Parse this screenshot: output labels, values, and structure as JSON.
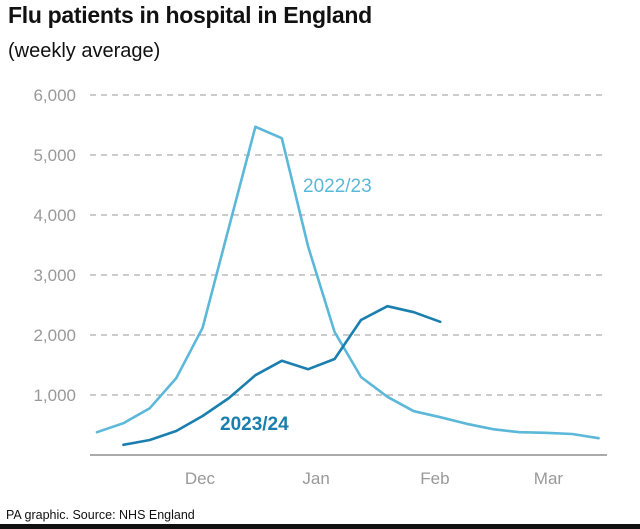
{
  "chart_data": {
    "type": "line",
    "title": "Flu patients in hospital in England",
    "subtitle": "(weekly average)",
    "ylim": [
      0,
      6000
    ],
    "yticks": [
      1000,
      2000,
      3000,
      4000,
      5000,
      6000
    ],
    "ytick_labels": [
      "1,000",
      "2,000",
      "3,000",
      "4,000",
      "5,000",
      "6,000"
    ],
    "grid": true,
    "xlim": [
      0,
      19
    ],
    "xticks": [
      {
        "label": "Dec",
        "x": 3.9
      },
      {
        "label": "Jan",
        "x": 8.3
      },
      {
        "label": "Feb",
        "x": 12.8
      },
      {
        "label": "Mar",
        "x": 17.1
      }
    ],
    "series": [
      {
        "name": "2022/23",
        "color": "#5bb8d8",
        "x": [
          0,
          1,
          2,
          3,
          4,
          5,
          6,
          7,
          8,
          9,
          10,
          11,
          12,
          13,
          14,
          15,
          16,
          17,
          18,
          19
        ],
        "values": [
          380,
          530,
          780,
          1280,
          2120,
          3800,
          5470,
          5280,
          3470,
          2050,
          1300,
          970,
          730,
          630,
          520,
          430,
          380,
          370,
          350,
          280
        ]
      },
      {
        "name": "2023/24",
        "color": "#1a7fae",
        "x": [
          1,
          2,
          3,
          4,
          5,
          6,
          7,
          8,
          9,
          10,
          11,
          12,
          13
        ],
        "values": [
          170,
          250,
          400,
          650,
          950,
          1330,
          1570,
          1430,
          1600,
          2250,
          2480,
          2380,
          2220
        ]
      }
    ]
  },
  "footer": "PA graphic. Source: NHS England"
}
